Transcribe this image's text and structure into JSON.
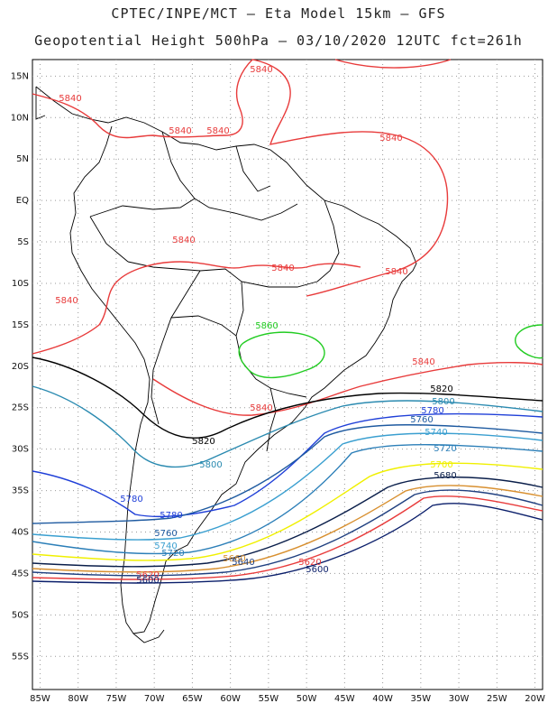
{
  "header": {
    "line1": "CPTEC/INPE/MCT –  Eta Model 15km – GFS",
    "line2": "Geopotential Height 500hPa – 03/10/2020 12UTC fct=261h"
  },
  "axes": {
    "lat_labels": [
      "15N",
      "10N",
      "5N",
      "EQ",
      "5S",
      "10S",
      "15S",
      "20S",
      "25S",
      "30S",
      "35S",
      "40S",
      "45S",
      "50S",
      "55S"
    ],
    "lon_labels": [
      "85W",
      "80W",
      "75W",
      "70W",
      "65W",
      "60W",
      "55W",
      "50W",
      "45W",
      "40W",
      "35W",
      "30W",
      "25W",
      "20W"
    ]
  },
  "contours": [
    {
      "value": "5840",
      "color": "#e83b3b"
    },
    {
      "value": "5860",
      "color": "#22cc22"
    },
    {
      "value": "5820",
      "color": "#000000"
    },
    {
      "value": "5800",
      "color": "#2a8ab0"
    },
    {
      "value": "5780",
      "color": "#1f3fd8"
    },
    {
      "value": "5760",
      "color": "#1e5aa0"
    },
    {
      "value": "5740",
      "color": "#3a9fd0"
    },
    {
      "value": "5720",
      "color": "#2c7fb8"
    },
    {
      "value": "5700",
      "color": "#f0f000"
    },
    {
      "value": "5680",
      "color": "#0a1e4a"
    },
    {
      "value": "5660",
      "color": "#d89030"
    },
    {
      "value": "5640",
      "color": "#204080"
    },
    {
      "value": "5620",
      "color": "#e83b3b"
    },
    {
      "value": "5600",
      "color": "#0a1e6a"
    }
  ]
}
